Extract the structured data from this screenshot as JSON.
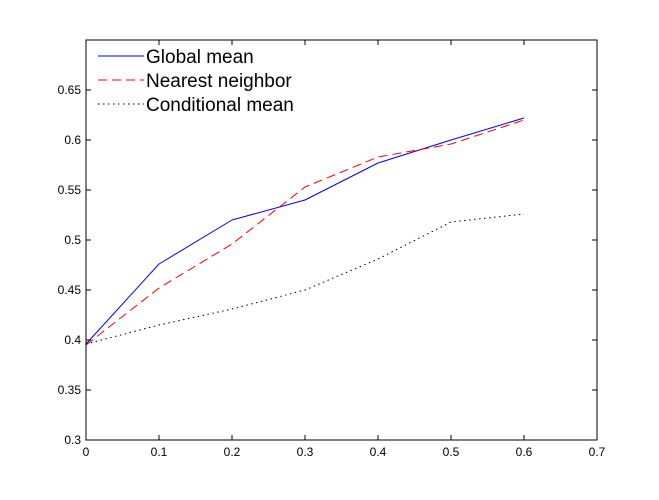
{
  "chart_data": {
    "type": "line",
    "title": "",
    "xlabel": "",
    "ylabel": "",
    "xlim": [
      0,
      0.7
    ],
    "ylim": [
      0.3,
      0.7
    ],
    "xticks": [
      0,
      0.1,
      0.2,
      0.3,
      0.4,
      0.5,
      0.6,
      0.7
    ],
    "xtick_labels": [
      "0",
      "0.1",
      "0.2",
      "0.3",
      "0.4",
      "0.5",
      "0.6",
      "0.7"
    ],
    "yticks": [
      0.3,
      0.35,
      0.4,
      0.45,
      0.5,
      0.55,
      0.6,
      0.65
    ],
    "ytick_labels": [
      "0.3",
      "0.35",
      "0.4",
      "0.45",
      "0.5",
      "0.55",
      "0.6",
      "0.65"
    ],
    "grid": false,
    "legend_position": "top-left",
    "series": [
      {
        "name": "Global mean",
        "color": "#0000ff",
        "line_style": "solid",
        "x": [
          0,
          0.1,
          0.2,
          0.3,
          0.4,
          0.5,
          0.6
        ],
        "y": [
          0.396,
          0.476,
          0.52,
          0.54,
          0.577,
          0.6,
          0.622
        ]
      },
      {
        "name": "Nearest neighbor",
        "color": "#ff0000",
        "line_style": "dashed",
        "x": [
          0,
          0.1,
          0.2,
          0.3,
          0.4,
          0.5,
          0.6
        ],
        "y": [
          0.395,
          0.452,
          0.496,
          0.553,
          0.583,
          0.596,
          0.62
        ]
      },
      {
        "name": "Conditional mean",
        "color": "#000000",
        "line_style": "dotted",
        "x": [
          0,
          0.1,
          0.2,
          0.3,
          0.4,
          0.5,
          0.6
        ],
        "y": [
          0.396,
          0.415,
          0.431,
          0.45,
          0.481,
          0.518,
          0.526
        ]
      }
    ]
  }
}
